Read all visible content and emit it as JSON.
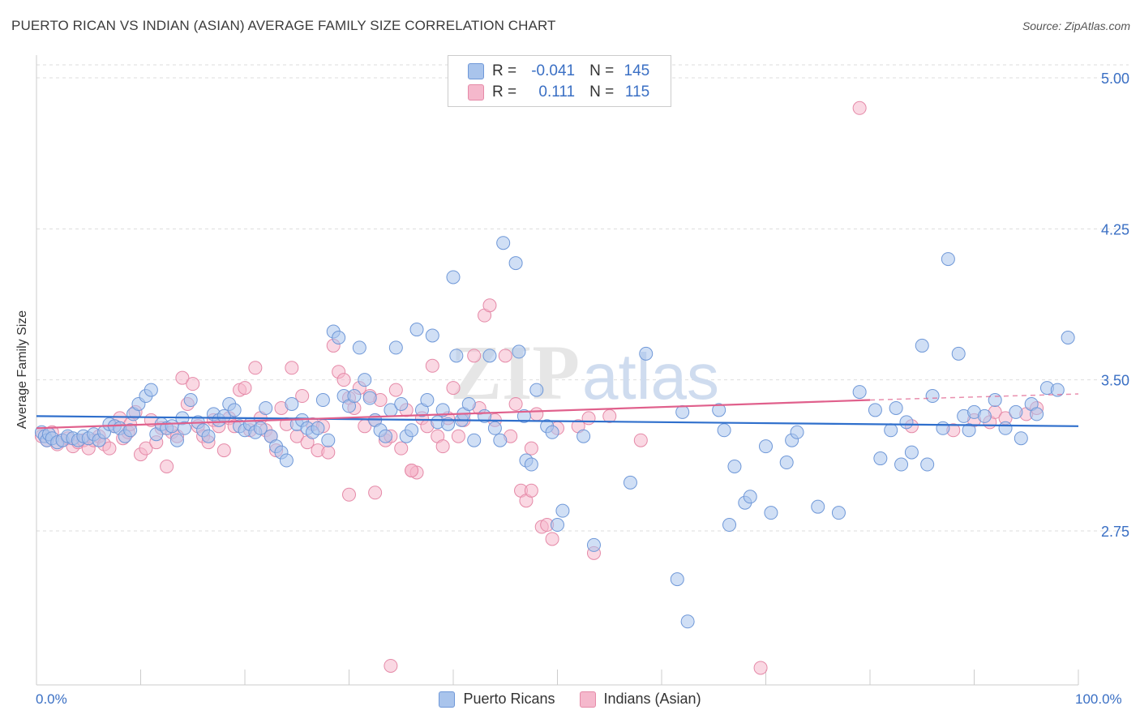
{
  "title": "PUERTO RICAN VS INDIAN (ASIAN) AVERAGE FAMILY SIZE CORRELATION CHART",
  "source": "Source: ZipAtlas.com",
  "legend": {
    "rows": [
      {
        "r_label": "R =",
        "r_value": "-0.041",
        "n_label": "N =",
        "n_value": "145"
      },
      {
        "r_label": "R =",
        "r_value": "0.111",
        "n_label": "N =",
        "n_value": "115"
      }
    ]
  },
  "bottom_legend": [
    "Puerto Ricans",
    "Indians (Asian)"
  ],
  "colors": {
    "blue_fill": "#a9c4ec",
    "blue_stroke": "#6f98d8",
    "blue_line": "#2f6fcc",
    "pink_fill": "#f5b8cc",
    "pink_stroke": "#e58aa8",
    "pink_line": "#e0608c",
    "tick_text": "#3a6fc4",
    "grid": "#dddddd"
  },
  "chart_data": {
    "type": "scatter",
    "title": "PUERTO RICAN VS INDIAN (ASIAN) AVERAGE FAMILY SIZE CORRELATION CHART",
    "xlabel": "",
    "ylabel": "Average Family Size",
    "xlim": [
      0,
      100
    ],
    "ylim": [
      2.0,
      5.12
    ],
    "x_tick_labels": [
      "0.0%",
      "100.0%"
    ],
    "y_ticks": [
      2.75,
      3.5,
      4.25,
      5.0
    ],
    "y_tick_labels": [
      "2.75",
      "3.50",
      "4.25",
      "5.00"
    ],
    "grid": true,
    "legend_placement": "top-center",
    "watermark": "ZIPatlas",
    "series": [
      {
        "name": "Puerto Ricans",
        "r": -0.041,
        "n": 145,
        "trend": {
          "x": [
            0,
            100
          ],
          "y": [
            3.32,
            3.27
          ]
        },
        "points": [
          [
            0.5,
            3.24
          ],
          [
            0.8,
            3.22
          ],
          [
            1,
            3.2
          ],
          [
            1.2,
            3.23
          ],
          [
            1.5,
            3.21
          ],
          [
            2,
            3.19
          ],
          [
            2.5,
            3.2
          ],
          [
            3,
            3.22
          ],
          [
            3.5,
            3.21
          ],
          [
            4,
            3.2
          ],
          [
            4.5,
            3.22
          ],
          [
            5,
            3.21
          ],
          [
            5.5,
            3.23
          ],
          [
            6,
            3.2
          ],
          [
            6.5,
            3.24
          ],
          [
            7,
            3.28
          ],
          [
            7.5,
            3.27
          ],
          [
            8,
            3.26
          ],
          [
            8.5,
            3.22
          ],
          [
            9,
            3.25
          ],
          [
            9.3,
            3.33
          ],
          [
            9.8,
            3.38
          ],
          [
            10.5,
            3.42
          ],
          [
            11,
            3.45
          ],
          [
            11.5,
            3.23
          ],
          [
            12,
            3.28
          ],
          [
            12.5,
            3.26
          ],
          [
            13,
            3.27
          ],
          [
            13.5,
            3.2
          ],
          [
            14,
            3.31
          ],
          [
            14.2,
            3.26
          ],
          [
            14.8,
            3.4
          ],
          [
            15.5,
            3.29
          ],
          [
            16,
            3.25
          ],
          [
            16.5,
            3.22
          ],
          [
            17,
            3.33
          ],
          [
            17.5,
            3.3
          ],
          [
            18,
            3.32
          ],
          [
            18.5,
            3.38
          ],
          [
            19,
            3.35
          ],
          [
            19.5,
            3.27
          ],
          [
            20,
            3.25
          ],
          [
            20.5,
            3.28
          ],
          [
            21,
            3.24
          ],
          [
            21.5,
            3.26
          ],
          [
            22,
            3.36
          ],
          [
            22.5,
            3.22
          ],
          [
            23,
            3.17
          ],
          [
            23.5,
            3.14
          ],
          [
            24,
            3.1
          ],
          [
            24.5,
            3.38
          ],
          [
            25,
            3.28
          ],
          [
            25.5,
            3.3
          ],
          [
            26,
            3.26
          ],
          [
            26.5,
            3.24
          ],
          [
            27,
            3.26
          ],
          [
            27.5,
            3.4
          ],
          [
            28,
            3.2
          ],
          [
            28.5,
            3.74
          ],
          [
            29,
            3.71
          ],
          [
            29.5,
            3.42
          ],
          [
            30,
            3.37
          ],
          [
            30.5,
            3.42
          ],
          [
            31,
            3.66
          ],
          [
            31.5,
            3.5
          ],
          [
            32,
            3.41
          ],
          [
            32.5,
            3.3
          ],
          [
            33,
            3.25
          ],
          [
            33.5,
            3.22
          ],
          [
            34,
            3.35
          ],
          [
            34.5,
            3.66
          ],
          [
            35,
            3.38
          ],
          [
            35.5,
            3.22
          ],
          [
            36,
            3.25
          ],
          [
            36.5,
            3.75
          ],
          [
            37,
            3.35
          ],
          [
            37.5,
            3.4
          ],
          [
            38,
            3.72
          ],
          [
            38.5,
            3.29
          ],
          [
            39,
            3.35
          ],
          [
            39.5,
            3.28
          ],
          [
            40,
            4.01
          ],
          [
            40.3,
            3.62
          ],
          [
            40.8,
            3.3
          ],
          [
            41,
            3.33
          ],
          [
            41.5,
            3.38
          ],
          [
            42,
            3.2
          ],
          [
            43,
            3.32
          ],
          [
            43.5,
            3.62
          ],
          [
            44,
            3.26
          ],
          [
            44.5,
            3.2
          ],
          [
            44.8,
            4.18
          ],
          [
            46,
            4.08
          ],
          [
            46.3,
            3.64
          ],
          [
            46.8,
            3.32
          ],
          [
            47,
            3.1
          ],
          [
            47.5,
            3.08
          ],
          [
            48,
            3.45
          ],
          [
            49,
            3.27
          ],
          [
            49.5,
            3.24
          ],
          [
            50,
            2.78
          ],
          [
            50.5,
            2.85
          ],
          [
            52.5,
            3.22
          ],
          [
            53.5,
            2.68
          ],
          [
            57,
            2.99
          ],
          [
            58.5,
            3.63
          ],
          [
            61.5,
            2.51
          ],
          [
            62,
            3.34
          ],
          [
            62.5,
            2.3
          ],
          [
            65.5,
            3.35
          ],
          [
            66,
            3.25
          ],
          [
            66.5,
            2.78
          ],
          [
            67,
            3.07
          ],
          [
            68,
            2.89
          ],
          [
            68.5,
            2.92
          ],
          [
            70,
            3.17
          ],
          [
            70.5,
            2.84
          ],
          [
            72,
            3.09
          ],
          [
            72.5,
            3.2
          ],
          [
            73,
            3.24
          ],
          [
            75,
            2.87
          ],
          [
            77,
            2.84
          ],
          [
            79,
            3.44
          ],
          [
            80.5,
            3.35
          ],
          [
            81,
            3.11
          ],
          [
            82,
            3.25
          ],
          [
            82.5,
            3.36
          ],
          [
            83,
            3.08
          ],
          [
            83.5,
            3.29
          ],
          [
            84,
            3.14
          ],
          [
            85,
            3.67
          ],
          [
            85.5,
            3.08
          ],
          [
            86,
            3.42
          ],
          [
            87,
            3.26
          ],
          [
            87.5,
            4.1
          ],
          [
            88.5,
            3.63
          ],
          [
            89,
            3.32
          ],
          [
            89.5,
            3.25
          ],
          [
            90,
            3.34
          ],
          [
            91,
            3.32
          ],
          [
            92,
            3.4
          ],
          [
            93,
            3.26
          ],
          [
            94,
            3.34
          ],
          [
            94.5,
            3.21
          ],
          [
            95.5,
            3.38
          ],
          [
            96,
            3.33
          ],
          [
            97,
            3.46
          ],
          [
            98,
            3.45
          ],
          [
            99,
            3.71
          ]
        ]
      },
      {
        "name": "Indians (Asian)",
        "r": 0.111,
        "n": 115,
        "trend": {
          "x": [
            0,
            80
          ],
          "y": [
            3.26,
            3.4
          ]
        },
        "trend_dashed": {
          "x": [
            80,
            100
          ],
          "y": [
            3.4,
            3.43
          ]
        },
        "points": [
          [
            0.5,
            3.22
          ],
          [
            1,
            3.2
          ],
          [
            1.5,
            3.24
          ],
          [
            2,
            3.18
          ],
          [
            2.5,
            3.2
          ],
          [
            3,
            3.21
          ],
          [
            3.5,
            3.17
          ],
          [
            4,
            3.19
          ],
          [
            4.5,
            3.2
          ],
          [
            5,
            3.16
          ],
          [
            5.5,
            3.2
          ],
          [
            6,
            3.22
          ],
          [
            6.5,
            3.18
          ],
          [
            7,
            3.16
          ],
          [
            7.5,
            3.27
          ],
          [
            8,
            3.31
          ],
          [
            8.3,
            3.21
          ],
          [
            8.8,
            3.24
          ],
          [
            9,
            3.28
          ],
          [
            9.5,
            3.34
          ],
          [
            10,
            3.13
          ],
          [
            10.5,
            3.16
          ],
          [
            11,
            3.3
          ],
          [
            11.5,
            3.19
          ],
          [
            12,
            3.26
          ],
          [
            12.5,
            3.07
          ],
          [
            13,
            3.24
          ],
          [
            13.5,
            3.22
          ],
          [
            14,
            3.51
          ],
          [
            14.5,
            3.38
          ],
          [
            15,
            3.48
          ],
          [
            15.5,
            3.27
          ],
          [
            16,
            3.22
          ],
          [
            16.5,
            3.19
          ],
          [
            17,
            3.3
          ],
          [
            17.5,
            3.27
          ],
          [
            18,
            3.15
          ],
          [
            18.5,
            3.31
          ],
          [
            19,
            3.27
          ],
          [
            19.5,
            3.45
          ],
          [
            20,
            3.46
          ],
          [
            20.5,
            3.25
          ],
          [
            21,
            3.56
          ],
          [
            21.5,
            3.31
          ],
          [
            22,
            3.25
          ],
          [
            22.5,
            3.22
          ],
          [
            23,
            3.15
          ],
          [
            23.5,
            3.36
          ],
          [
            24,
            3.28
          ],
          [
            24.5,
            3.56
          ],
          [
            25,
            3.22
          ],
          [
            25.5,
            3.42
          ],
          [
            26,
            3.19
          ],
          [
            26.5,
            3.28
          ],
          [
            27,
            3.15
          ],
          [
            27.5,
            3.27
          ],
          [
            28,
            3.14
          ],
          [
            28.5,
            3.67
          ],
          [
            29,
            3.54
          ],
          [
            29.5,
            3.5
          ],
          [
            30,
            3.41
          ],
          [
            30.5,
            3.36
          ],
          [
            31,
            3.46
          ],
          [
            31.5,
            3.27
          ],
          [
            32,
            3.42
          ],
          [
            32.5,
            3.3
          ],
          [
            33,
            3.4
          ],
          [
            33.5,
            3.2
          ],
          [
            34,
            3.22
          ],
          [
            34.5,
            3.45
          ],
          [
            35,
            3.16
          ],
          [
            35.5,
            3.35
          ],
          [
            36,
            3.05
          ],
          [
            36.5,
            3.04
          ],
          [
            37,
            3.31
          ],
          [
            37.5,
            3.27
          ],
          [
            38,
            3.57
          ],
          [
            38.5,
            3.22
          ],
          [
            39,
            3.17
          ],
          [
            39.5,
            3.31
          ],
          [
            40,
            3.46
          ],
          [
            40.5,
            3.22
          ],
          [
            41,
            3.3
          ],
          [
            42,
            3.62
          ],
          [
            42.5,
            3.36
          ],
          [
            43,
            3.82
          ],
          [
            43.5,
            3.87
          ],
          [
            44,
            3.3
          ],
          [
            45,
            3.62
          ],
          [
            45.5,
            3.22
          ],
          [
            46,
            3.38
          ],
          [
            46.5,
            2.95
          ],
          [
            47,
            2.9
          ],
          [
            47.5,
            3.16
          ],
          [
            48,
            3.33
          ],
          [
            48.5,
            2.77
          ],
          [
            49,
            2.78
          ],
          [
            49.5,
            2.71
          ],
          [
            50,
            3.26
          ],
          [
            52,
            3.27
          ],
          [
            53,
            3.31
          ],
          [
            55,
            3.32
          ],
          [
            58,
            3.2
          ],
          [
            79,
            4.85
          ],
          [
            84,
            3.27
          ],
          [
            88,
            3.25
          ],
          [
            90,
            3.3
          ],
          [
            91.5,
            3.29
          ],
          [
            92,
            3.34
          ],
          [
            93,
            3.31
          ],
          [
            95,
            3.33
          ],
          [
            96,
            3.36
          ],
          [
            30,
            2.93
          ],
          [
            32.5,
            2.94
          ],
          [
            34,
            2.08
          ],
          [
            47.5,
            2.95
          ],
          [
            53.5,
            2.64
          ],
          [
            69.5,
            2.07
          ],
          [
            36,
            3.05
          ]
        ]
      }
    ]
  }
}
